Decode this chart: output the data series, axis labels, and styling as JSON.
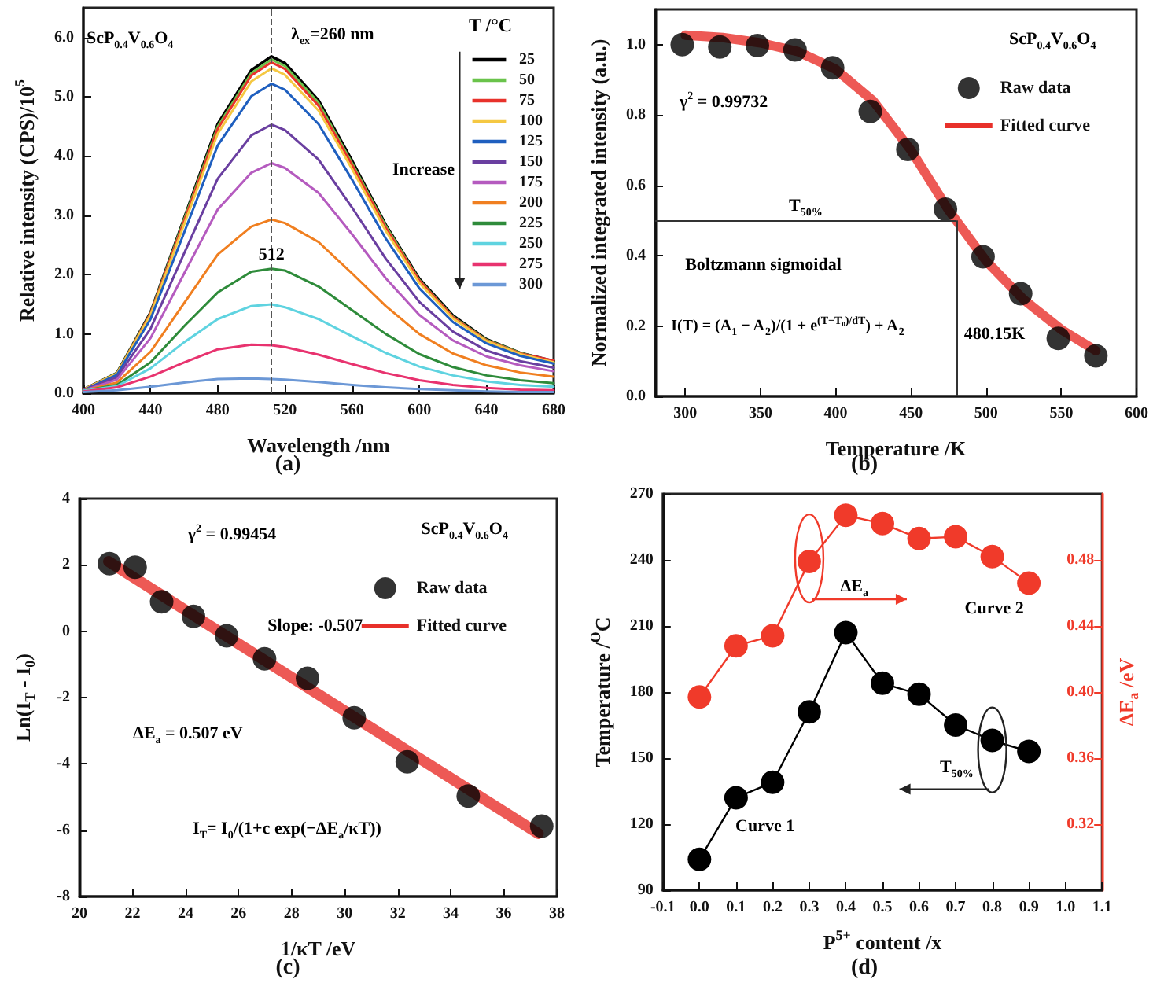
{
  "chart_data": [
    {
      "type": "line",
      "title": "(a)",
      "xlabel": "Wavelength /nm",
      "ylabel": "Relative intensity (CPS)/10$^{5}$",
      "legend_title": "T /°C",
      "legend": "top right",
      "marker": "none",
      "line_style": "solid",
      "x": [
        400,
        420,
        440,
        460,
        480,
        500,
        512,
        520,
        540,
        560,
        580,
        600,
        620,
        640,
        660,
        680
      ],
      "series": [
        {
          "name": "25",
          "color": "#000000",
          "values": [
            0.06,
            0.34,
            1.36,
            2.95,
            4.54,
            5.45,
            5.68,
            5.57,
            4.94,
            3.92,
            2.84,
            1.93,
            1.31,
            0.91,
            0.68,
            0.54
          ]
        },
        {
          "name": "50",
          "color": "#6ac34b",
          "values": [
            0.06,
            0.34,
            1.35,
            2.93,
            4.5,
            5.4,
            5.63,
            5.52,
            4.9,
            3.88,
            2.82,
            1.91,
            1.29,
            0.9,
            0.68,
            0.53
          ]
        },
        {
          "name": "75",
          "color": "#e8322b",
          "values": [
            0.06,
            0.33,
            1.34,
            2.9,
            4.46,
            5.36,
            5.58,
            5.47,
            4.85,
            3.85,
            2.79,
            1.9,
            1.28,
            0.89,
            0.67,
            0.55
          ]
        },
        {
          "name": "100",
          "color": "#f5c842",
          "values": [
            0.06,
            0.33,
            1.32,
            2.85,
            4.38,
            5.26,
            5.48,
            5.37,
            4.77,
            3.78,
            2.74,
            1.86,
            1.26,
            0.88,
            0.66,
            0.52
          ]
        },
        {
          "name": "125",
          "color": "#1f5fbf",
          "values": [
            0.05,
            0.31,
            1.25,
            2.71,
            4.18,
            5.01,
            5.22,
            5.12,
            4.54,
            3.6,
            2.61,
            1.77,
            1.2,
            0.84,
            0.63,
            0.5
          ]
        },
        {
          "name": "150",
          "color": "#6a3fa0",
          "values": [
            0.05,
            0.27,
            1.09,
            2.36,
            3.62,
            4.35,
            4.53,
            4.44,
            3.94,
            3.13,
            2.27,
            1.54,
            1.04,
            0.72,
            0.54,
            0.43
          ]
        },
        {
          "name": "175",
          "color": "#b55bbf",
          "values": [
            0.04,
            0.23,
            0.93,
            2.02,
            3.1,
            3.72,
            3.88,
            3.8,
            3.38,
            2.68,
            1.94,
            1.32,
            0.89,
            0.62,
            0.47,
            0.37
          ]
        },
        {
          "name": "200",
          "color": "#f07f20",
          "values": [
            0.04,
            0.18,
            0.7,
            1.52,
            2.34,
            2.81,
            2.93,
            2.87,
            2.55,
            2.02,
            1.47,
            1.0,
            0.67,
            0.47,
            0.35,
            0.28
          ]
        },
        {
          "name": "225",
          "color": "#2e8b3a",
          "values": [
            0.04,
            0.14,
            0.52,
            1.13,
            1.7,
            2.05,
            2.1,
            2.07,
            1.8,
            1.4,
            1.0,
            0.66,
            0.44,
            0.3,
            0.22,
            0.17
          ]
        },
        {
          "name": "250",
          "color": "#5fd3e0",
          "values": [
            0.04,
            0.12,
            0.42,
            0.86,
            1.25,
            1.47,
            1.5,
            1.45,
            1.25,
            0.96,
            0.68,
            0.45,
            0.3,
            0.2,
            0.14,
            0.11
          ]
        },
        {
          "name": "275",
          "color": "#e8336f",
          "values": [
            0.03,
            0.1,
            0.28,
            0.52,
            0.74,
            0.82,
            0.81,
            0.78,
            0.65,
            0.49,
            0.34,
            0.22,
            0.14,
            0.09,
            0.06,
            0.05
          ]
        },
        {
          "name": "300",
          "color": "#6c98d6",
          "values": [
            0.02,
            0.05,
            0.11,
            0.18,
            0.24,
            0.25,
            0.24,
            0.23,
            0.19,
            0.14,
            0.1,
            0.07,
            0.05,
            0.03,
            0.02,
            0.02
          ]
        }
      ],
      "xlim": [
        400,
        680
      ],
      "xticks": [
        400,
        440,
        480,
        520,
        560,
        600,
        640,
        680
      ],
      "ylim": [
        0,
        6.5
      ],
      "yticks": [
        {
          "value": 0,
          "label": "0.0"
        },
        {
          "value": 1,
          "label": "1.0"
        },
        {
          "value": 2,
          "label": "2.0"
        },
        {
          "value": 3,
          "label": "3.0"
        },
        {
          "value": 4,
          "label": "4.0"
        },
        {
          "value": 5,
          "label": "5.0"
        },
        {
          "value": 6,
          "label": "6.0"
        }
      ],
      "ref_lines": [
        {
          "axis": "x",
          "value": 512,
          "label": "512",
          "line_style": "dashed",
          "color": "#555555"
        }
      ],
      "annotations": [
        "ScP$_{0.4}$V$_{0.6}$O$_{4}$",
        "λ$_{ex}$=260 nm",
        "Increase"
      ]
    },
    {
      "type": "scatter",
      "title": "(b)",
      "xlabel": "Temperature /K",
      "ylabel": "Normalized integrated intensity (a.u.)",
      "legend": "top right",
      "series": [
        {
          "name": "Raw data",
          "color": "#000000",
          "marker": "circle",
          "x": [
            298,
            323,
            348,
            373,
            398,
            423,
            448,
            473,
            498,
            523,
            548,
            573
          ],
          "values": [
            1.0,
            0.993,
            0.997,
            0.985,
            0.934,
            0.81,
            0.702,
            0.532,
            0.397,
            0.292,
            0.165,
            0.115
          ]
        },
        {
          "name": "Fitted curve",
          "type": "line",
          "color": "#e8302a",
          "marker": "none",
          "x": [
            300,
            325,
            350,
            375,
            400,
            425,
            450,
            475,
            500,
            525,
            550,
            573
          ],
          "values": [
            1.027,
            1.02,
            1.005,
            0.98,
            0.93,
            0.84,
            0.7,
            0.53,
            0.385,
            0.275,
            0.19,
            0.13
          ]
        }
      ],
      "xlim": [
        280,
        600
      ],
      "xticks": [
        300,
        350,
        400,
        450,
        500,
        550,
        600
      ],
      "ylim": [
        0,
        1.1
      ],
      "yticks": [
        {
          "value": 0,
          "label": "0.0"
        },
        0.2,
        0.4,
        0.6,
        0.8,
        {
          "value": 1,
          "label": "1.0"
        }
      ],
      "ref_lines": [
        {
          "axis": "y",
          "value": 0.5,
          "label": "T$_{50%}$",
          "color": "#333333"
        },
        {
          "axis": "x",
          "value": 480.15,
          "label": "480.15K",
          "color": "#333333"
        }
      ],
      "annotations": [
        "ScP$_{0.4}$V$_{0.6}$O$_{4}$",
        "γ$^{2}$ = 0.99732",
        "Boltzmann sigmoidal",
        "I(T) = (A$_{1}$ − A$_{2}$)/(1 + e$^{(T−T₀)/dT}$) + A$_{2}$"
      ]
    },
    {
      "type": "scatter",
      "title": "(c)",
      "xlabel": "1/κT /eV",
      "ylabel": "Ln(I$_{T}$ - I$_{0}$)",
      "legend": "top right",
      "series": [
        {
          "name": "Raw data",
          "color": "#000000",
          "marker": "circle",
          "x": [
            21.13,
            22.1,
            23.1,
            24.3,
            25.55,
            26.98,
            28.6,
            30.36,
            32.36,
            34.66,
            37.43
          ],
          "values": [
            2.04,
            1.93,
            0.89,
            0.45,
            -0.14,
            -0.83,
            -1.42,
            -2.61,
            -3.94,
            -4.97,
            -5.88
          ]
        },
        {
          "name": "Fitted curve",
          "type": "line",
          "color": "#e8302a",
          "marker": "none",
          "x": [
            21.1,
            37.3
          ],
          "values": [
            2.1,
            -6.1
          ]
        }
      ],
      "xlim": [
        20,
        38
      ],
      "xticks": [
        20,
        22,
        24,
        26,
        28,
        30,
        32,
        34,
        36,
        38
      ],
      "ylim": [
        -8,
        4
      ],
      "yticks": [
        -8,
        -6,
        -4,
        -2,
        0,
        2,
        4
      ],
      "annotations": [
        "ScP$_{0.4}$V$_{0.6}$O$_{4}$",
        "γ$^{2}$ = 0.99454",
        "Slope: -0.507",
        "ΔE$_{a}$ = 0.507 eV",
        "I$_{T}$= I$_{0}$/(1+c exp(−ΔE$_{a}$/κT))"
      ]
    },
    {
      "type": "line",
      "title": "(d)",
      "xlabel": "P$^{5+}$ content /x",
      "ylabel": "Temperature /$^{O}$C",
      "y2label": "ΔE$_{a}$ /eV",
      "marker": "circle",
      "line_style": "solid",
      "x": [
        0,
        0.1,
        0.2,
        0.3,
        0.4,
        0.5,
        0.6,
        0.7,
        0.8,
        0.9
      ],
      "series": [
        {
          "color": "#000000",
          "values": [
            104,
            132,
            139,
            171,
            207,
            184,
            179,
            165,
            158,
            153
          ]
        },
        {
          "color": "#f03a2a",
          "axis": "y2",
          "values": [
            0.397,
            0.428,
            0.434,
            0.479,
            0.507,
            0.502,
            0.493,
            0.494,
            0.482,
            0.466
          ]
        }
      ],
      "xlim": [
        -0.1,
        1.1
      ],
      "xticks": [
        -0.1,
        {
          "value": 0,
          "label": "0.0"
        },
        0.1,
        0.2,
        0.3,
        0.4,
        0.5,
        0.6,
        0.7,
        0.8,
        0.9,
        {
          "value": 1,
          "label": "1.0"
        },
        1.1
      ],
      "ylim": [
        90,
        270
      ],
      "yticks": [
        90,
        120,
        150,
        180,
        210,
        240,
        270
      ],
      "y2lim": [
        0.28,
        0.52
      ],
      "y2ticks": [
        0.32,
        0.36,
        {
          "value": 0.4,
          "label": "0.40"
        },
        0.44,
        0.48
      ],
      "annotations": [
        "Curve 1",
        "Curve 2",
        "ΔE$_{a}$",
        "T$_{50%}$"
      ]
    }
  ]
}
